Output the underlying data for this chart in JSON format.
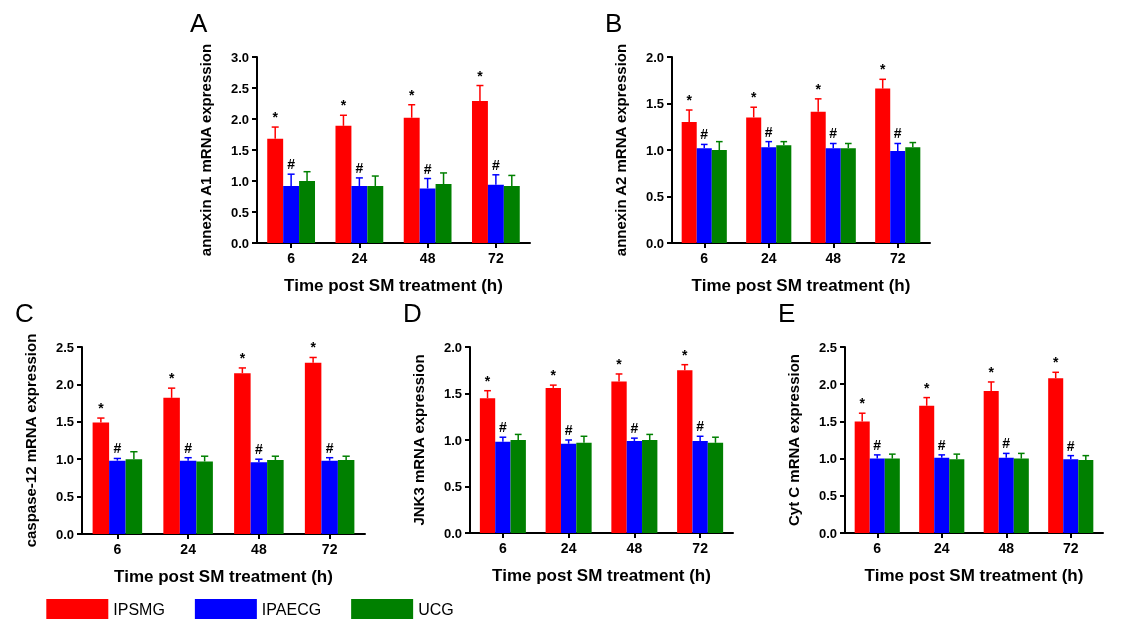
{
  "chart_data": [
    {
      "type": "bar",
      "title": "A",
      "xlabel": "Time post SM treatment (h)",
      "ylabel": "annexin A1 mRNA expression",
      "categories": [
        "6",
        "24",
        "48",
        "72"
      ],
      "ylim": [
        0,
        3
      ],
      "yticks": [
        {
          "value": 0,
          "label": "0.0"
        },
        {
          "value": 0.5,
          "label": "0.5"
        },
        {
          "value": 1,
          "label": "1.0"
        },
        {
          "value": 1.5,
          "label": "1.5"
        },
        {
          "value": 2,
          "label": "2.0"
        },
        {
          "value": 2.5,
          "label": "2.5"
        },
        {
          "value": 3,
          "label": "3.0"
        }
      ],
      "grid": false,
      "legend": false,
      "series": [
        {
          "color": "#ff0000",
          "values": [
            1.68,
            1.89,
            2.02,
            2.29
          ],
          "errors": [
            [
              1.68,
              1.87
            ],
            [
              1.89,
              2.06
            ],
            [
              2.02,
              2.23
            ],
            [
              2.29,
              2.54
            ]
          ]
        },
        {
          "color": "#0000ff",
          "values": [
            0.92,
            0.92,
            0.88,
            0.94
          ],
          "errors": [
            [
              0.92,
              1.11
            ],
            [
              0.92,
              1.05
            ],
            [
              0.88,
              1.04
            ],
            [
              0.94,
              1.1
            ]
          ]
        },
        {
          "color": "#008000",
          "values": [
            1.0,
            0.92,
            0.95,
            0.92
          ],
          "errors": [
            [
              1.0,
              1.15
            ],
            [
              0.92,
              1.08
            ],
            [
              0.95,
              1.13
            ],
            [
              0.92,
              1.09
            ]
          ]
        }
      ],
      "annotations": [
        "*",
        "*",
        "*",
        "*",
        "#",
        "#",
        "#",
        "#"
      ]
    },
    {
      "type": "bar",
      "title": "B",
      "xlabel": "Time post SM treatment (h)",
      "ylabel": "annexin A2 mRNA expression",
      "categories": [
        "6",
        "24",
        "48",
        "72"
      ],
      "ylim": [
        0,
        2
      ],
      "yticks": [
        {
          "value": 0,
          "label": "0.0"
        },
        {
          "value": 0.5,
          "label": "0.5"
        },
        {
          "value": 1,
          "label": "1.0"
        },
        {
          "value": 1.5,
          "label": "1.5"
        },
        {
          "value": 2,
          "label": "2.0"
        }
      ],
      "grid": false,
      "legend": false,
      "series": [
        {
          "color": "#ff0000",
          "values": [
            1.3,
            1.35,
            1.41,
            1.66
          ],
          "errors": [
            [
              1.3,
              1.43
            ],
            [
              1.35,
              1.46
            ],
            [
              1.41,
              1.55
            ],
            [
              1.66,
              1.76
            ]
          ]
        },
        {
          "color": "#0000ff",
          "values": [
            1.02,
            1.03,
            1.02,
            0.99
          ],
          "errors": [
            [
              1.02,
              1.06
            ],
            [
              1.03,
              1.09
            ],
            [
              1.02,
              1.07
            ],
            [
              0.99,
              1.07
            ]
          ]
        },
        {
          "color": "#008000",
          "values": [
            1.0,
            1.05,
            1.02,
            1.03
          ],
          "errors": [
            [
              1.0,
              1.09
            ],
            [
              1.05,
              1.09
            ],
            [
              1.02,
              1.07
            ],
            [
              1.03,
              1.08
            ]
          ]
        }
      ],
      "annotations": [
        "*",
        "*",
        "*",
        "*",
        "#",
        "#",
        "#",
        "#"
      ]
    },
    {
      "type": "bar",
      "title": "C",
      "xlabel": "Time post SM treatment (h)",
      "ylabel": "caspase-12 mRNA expression",
      "categories": [
        "6",
        "24",
        "48",
        "72"
      ],
      "ylim": [
        0,
        2.5
      ],
      "yticks": [
        {
          "value": 0,
          "label": "0.0"
        },
        {
          "value": 0.5,
          "label": "0.5"
        },
        {
          "value": 1,
          "label": "1.0"
        },
        {
          "value": 1.5,
          "label": "1.5"
        },
        {
          "value": 2,
          "label": "2.0"
        },
        {
          "value": 2.5,
          "label": "2.5"
        }
      ],
      "grid": false,
      "legend": "bottom",
      "series": [
        {
          "name": "IPSMG",
          "color": "#ff0000",
          "values": [
            1.49,
            1.82,
            2.15,
            2.29
          ],
          "errors": [
            [
              1.49,
              1.55
            ],
            [
              1.82,
              1.95
            ],
            [
              2.15,
              2.22
            ],
            [
              2.29,
              2.36
            ]
          ]
        },
        {
          "name": "IPAECG",
          "color": "#0000ff",
          "values": [
            0.98,
            0.98,
            0.96,
            0.98
          ],
          "errors": [
            [
              0.98,
              1.01
            ],
            [
              0.98,
              1.02
            ],
            [
              0.96,
              1.0
            ],
            [
              0.98,
              1.02
            ]
          ]
        },
        {
          "name": "UCG",
          "color": "#008000",
          "values": [
            1.0,
            0.97,
            0.99,
            0.99
          ],
          "errors": [
            [
              1.0,
              1.1
            ],
            [
              0.97,
              1.04
            ],
            [
              0.99,
              1.04
            ],
            [
              0.99,
              1.04
            ]
          ]
        }
      ],
      "annotations": [
        "*",
        "*",
        "*",
        "*",
        "#",
        "#",
        "#",
        "#"
      ]
    },
    {
      "type": "bar",
      "title": "D",
      "xlabel": "Time post SM treatment (h)",
      "ylabel": "JNK3 mRNA expression",
      "categories": [
        "6",
        "24",
        "48",
        "72"
      ],
      "ylim": [
        0,
        2
      ],
      "yticks": [
        {
          "value": 0,
          "label": "0.0"
        },
        {
          "value": 0.5,
          "label": "0.5"
        },
        {
          "value": 1,
          "label": "1.0"
        },
        {
          "value": 1.5,
          "label": "1.5"
        },
        {
          "value": 2,
          "label": "2.0"
        }
      ],
      "grid": false,
      "legend": false,
      "series": [
        {
          "color": "#ff0000",
          "values": [
            1.45,
            1.56,
            1.63,
            1.75
          ],
          "errors": [
            [
              1.45,
              1.53
            ],
            [
              1.56,
              1.59
            ],
            [
              1.63,
              1.71
            ],
            [
              1.75,
              1.81
            ]
          ]
        },
        {
          "color": "#0000ff",
          "values": [
            0.98,
            0.96,
            0.99,
            0.99
          ],
          "errors": [
            [
              0.98,
              1.03
            ],
            [
              0.96,
              1.0
            ],
            [
              0.99,
              1.02
            ],
            [
              0.99,
              1.04
            ]
          ]
        },
        {
          "color": "#008000",
          "values": [
            1.0,
            0.97,
            1.0,
            0.97
          ],
          "errors": [
            [
              1.0,
              1.06
            ],
            [
              0.97,
              1.04
            ],
            [
              1.0,
              1.06
            ],
            [
              0.97,
              1.03
            ]
          ]
        }
      ],
      "annotations": [
        "*",
        "*",
        "*",
        "*",
        "#",
        "#",
        "#",
        "#"
      ]
    },
    {
      "type": "bar",
      "title": "E",
      "xlabel": "Time post SM treatment (h)",
      "ylabel": "Cyt C mRNA expression",
      "categories": [
        "6",
        "24",
        "48",
        "72"
      ],
      "ylim": [
        0,
        2.5
      ],
      "yticks": [
        {
          "value": 0,
          "label": "0.0"
        },
        {
          "value": 0.5,
          "label": "0.5"
        },
        {
          "value": 1,
          "label": "1.0"
        },
        {
          "value": 1.5,
          "label": "1.5"
        },
        {
          "value": 2,
          "label": "2.0"
        },
        {
          "value": 2.5,
          "label": "2.5"
        }
      ],
      "grid": false,
      "legend": false,
      "series": [
        {
          "color": "#ff0000",
          "values": [
            1.5,
            1.71,
            1.91,
            2.08
          ],
          "errors": [
            [
              1.5,
              1.61
            ],
            [
              1.71,
              1.82
            ],
            [
              1.91,
              2.03
            ],
            [
              2.08,
              2.16
            ]
          ]
        },
        {
          "color": "#0000ff",
          "values": [
            1.0,
            1.01,
            1.01,
            0.99
          ],
          "errors": [
            [
              1.0,
              1.05
            ],
            [
              1.01,
              1.05
            ],
            [
              1.01,
              1.07
            ],
            [
              0.99,
              1.04
            ]
          ]
        },
        {
          "color": "#008000",
          "values": [
            1.0,
            0.99,
            1.0,
            0.98
          ],
          "errors": [
            [
              1.0,
              1.06
            ],
            [
              0.99,
              1.06
            ],
            [
              1.0,
              1.07
            ],
            [
              0.98,
              1.04
            ]
          ]
        }
      ],
      "annotations": [
        "*",
        "*",
        "*",
        "*",
        "#",
        "#",
        "#",
        "#"
      ]
    }
  ]
}
